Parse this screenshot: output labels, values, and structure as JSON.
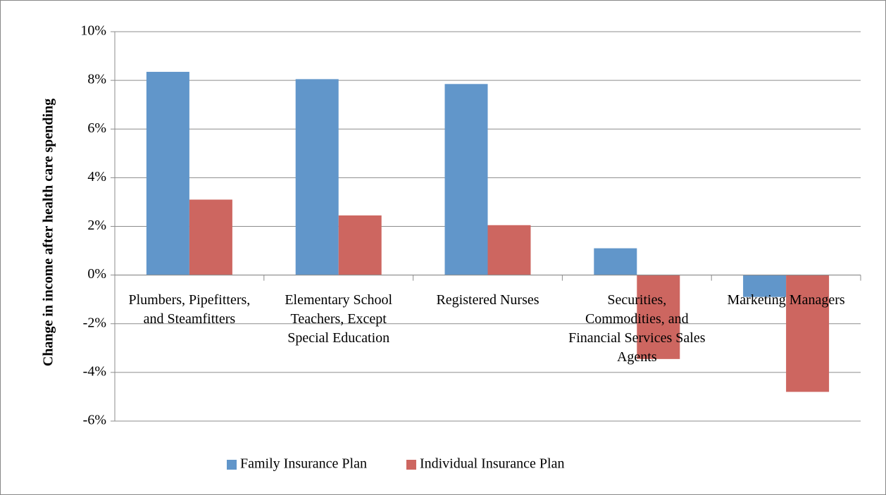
{
  "chart_data": {
    "type": "bar",
    "y_axis_label": "Change in income after health care spending",
    "categories": [
      "Plumbers, Pipefitters, and Steamfitters",
      "Elementary School Teachers, Except Special Education",
      "Registered Nurses",
      "Securities, Commodities, and Financial Services Sales Agents",
      "Marketing Managers"
    ],
    "series": [
      {
        "name": "Family Insurance Plan",
        "color": "#6196ca",
        "values": [
          8.35,
          8.05,
          7.85,
          1.1,
          -0.9
        ]
      },
      {
        "name": "Individual Insurance Plan",
        "color": "#cd6660",
        "values": [
          3.1,
          2.45,
          2.05,
          -3.45,
          -4.8
        ]
      }
    ],
    "ylim": [
      -6,
      10
    ],
    "yticks": [
      {
        "value": -6,
        "label": "-6%"
      },
      {
        "value": -4,
        "label": "-4%"
      },
      {
        "value": -2,
        "label": "-2%"
      },
      {
        "value": 0,
        "label": "0%"
      },
      {
        "value": 2,
        "label": "2%"
      },
      {
        "value": 4,
        "label": "4%"
      },
      {
        "value": 6,
        "label": "6%"
      },
      {
        "value": 8,
        "label": "8%"
      },
      {
        "value": 10,
        "label": "10%"
      }
    ],
    "grid": true,
    "legend": "bottom"
  }
}
